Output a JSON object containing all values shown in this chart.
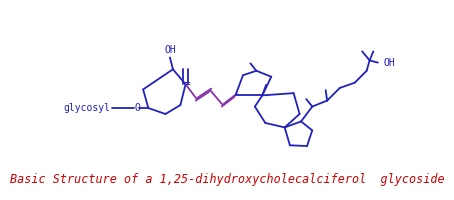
{
  "title": "Basic Structure of a 1,25-dihydroxycholecalciferol  glycoside",
  "title_color": "#cc0000",
  "title_fontsize": 8.5,
  "bg_color": "#ffffff",
  "line_color_blue": "#2222bb",
  "line_color_purple": "#8833aa",
  "label_color_blue": "#2222bb",
  "lw": 1.3,
  "glycosyl_label": "glycosyl",
  "OH_top": "OH",
  "OH_right": "OH",
  "O_label": "O"
}
